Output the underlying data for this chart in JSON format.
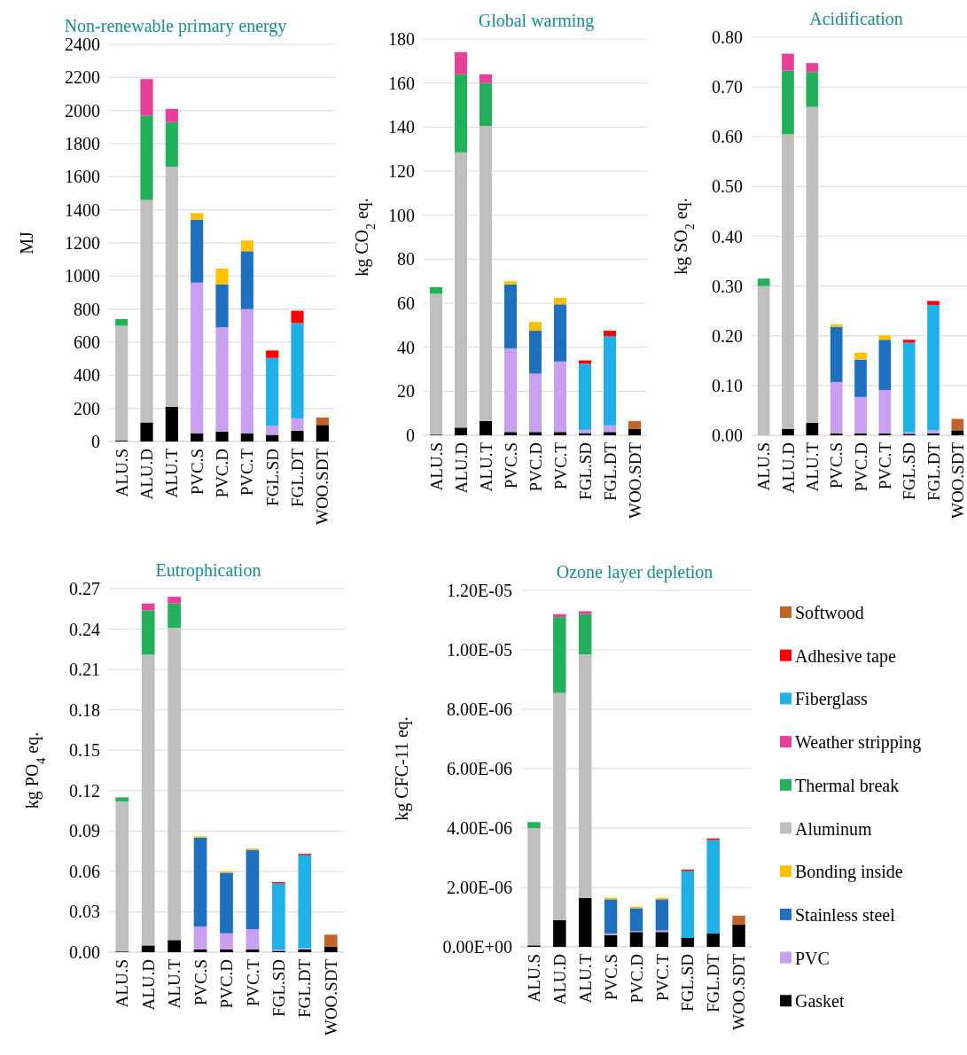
{
  "chart_data": [
    {
      "type": "bar",
      "stacked": true,
      "title": "Non-renewable primary energy",
      "ylabel": "MJ",
      "categories": [
        "ALU.S",
        "ALU.D",
        "ALU.T",
        "PVC.S",
        "PVC.D",
        "PVC.T",
        "FGL.SD",
        "FGL.DT",
        "WOO.SDT"
      ],
      "ylim": [
        0,
        2400
      ],
      "yticks": [
        0,
        200,
        400,
        600,
        800,
        1000,
        1200,
        1400,
        1600,
        1800,
        2000,
        2200,
        2400
      ],
      "grid": "y",
      "legend": false,
      "series": [
        {
          "color": "#000000",
          "values": [
            5,
            115,
            210,
            50,
            60,
            50,
            40,
            65,
            100
          ]
        },
        {
          "color": "#c9a0f0",
          "values": [
            null,
            null,
            null,
            910,
            630,
            750,
            55,
            75,
            null
          ]
        },
        {
          "color": "#1f6fbf",
          "values": [
            null,
            null,
            null,
            380,
            260,
            350,
            null,
            null,
            null
          ]
        },
        {
          "color": "#ffc000",
          "values": [
            null,
            null,
            null,
            40,
            95,
            65,
            null,
            null,
            null
          ]
        },
        {
          "color": "#bfbfbf",
          "values": [
            695,
            1345,
            1450,
            null,
            null,
            null,
            null,
            null,
            null
          ]
        },
        {
          "color": "#22b05a",
          "values": [
            40,
            510,
            270,
            null,
            null,
            null,
            null,
            null,
            null
          ]
        },
        {
          "color": "#e8409a",
          "values": [
            null,
            220,
            80,
            null,
            null,
            null,
            null,
            null,
            null
          ]
        },
        {
          "color": "#1fb0e8",
          "values": [
            null,
            null,
            null,
            null,
            null,
            null,
            410,
            575,
            null
          ]
        },
        {
          "color": "#ff0000",
          "values": [
            null,
            null,
            null,
            null,
            null,
            null,
            45,
            75,
            null
          ]
        },
        {
          "color": "#c0642a",
          "values": [
            null,
            null,
            null,
            null,
            null,
            null,
            null,
            null,
            45
          ]
        }
      ]
    },
    {
      "type": "bar",
      "stacked": true,
      "title": "Global warming",
      "ylabel": "kg CO$_{2}$ eq.",
      "categories": [
        "ALU.S",
        "ALU.D",
        "ALU.T",
        "PVC.S",
        "PVC.D",
        "PVC.T",
        "FGL.SD",
        "FGL.DT",
        "WOO.SDT"
      ],
      "ylim": [
        0,
        180
      ],
      "yticks": [
        0,
        20,
        40,
        60,
        80,
        100,
        120,
        140,
        160,
        180
      ],
      "grid": "y",
      "legend": false,
      "series": [
        {
          "color": "#000000",
          "values": [
            0.3,
            3.5,
            6.5,
            1.5,
            1.5,
            1.5,
            1,
            1.5,
            3
          ]
        },
        {
          "color": "#c9a0f0",
          "values": [
            null,
            null,
            null,
            38,
            26.5,
            32,
            1.5,
            3,
            null
          ]
        },
        {
          "color": "#1f6fbf",
          "values": [
            null,
            null,
            null,
            29,
            19.5,
            26,
            null,
            null,
            null
          ]
        },
        {
          "color": "#ffc000",
          "values": [
            null,
            null,
            null,
            1.5,
            4,
            3,
            null,
            null,
            null
          ]
        },
        {
          "color": "#bfbfbf",
          "values": [
            64,
            125,
            134,
            null,
            null,
            null,
            null,
            null,
            null
          ]
        },
        {
          "color": "#22b05a",
          "values": [
            3,
            35.5,
            19.5,
            null,
            null,
            null,
            null,
            null,
            null
          ]
        },
        {
          "color": "#e8409a",
          "values": [
            null,
            10,
            4,
            null,
            null,
            null,
            null,
            null,
            null
          ]
        },
        {
          "color": "#1fb0e8",
          "values": [
            null,
            null,
            null,
            null,
            null,
            null,
            30,
            40.5,
            null
          ]
        },
        {
          "color": "#ff0000",
          "values": [
            null,
            null,
            null,
            null,
            null,
            null,
            1.5,
            2.5,
            null
          ]
        },
        {
          "color": "#c0642a",
          "values": [
            null,
            null,
            null,
            null,
            null,
            null,
            null,
            null,
            3.5
          ]
        }
      ]
    },
    {
      "type": "bar",
      "stacked": true,
      "title": "Acidification",
      "ylabel": "kg SO$_{2}$ eq.",
      "categories": [
        "ALU.S",
        "ALU.D",
        "ALU.T",
        "PVC.S",
        "PVC.D",
        "PVC.T",
        "FGL.SD",
        "FGL.DT",
        "WOO.SDT"
      ],
      "ylim": [
        0,
        0.8
      ],
      "yticks": [
        {
          "value": 0,
          "label": "0.00"
        },
        {
          "value": 0.1,
          "label": "0.10"
        },
        {
          "value": 0.2,
          "label": "0.20"
        },
        {
          "value": 0.3,
          "label": "0.30"
        },
        {
          "value": 0.4,
          "label": "0.40"
        },
        {
          "value": 0.5,
          "label": "0.50"
        },
        {
          "value": 0.6,
          "label": "0.60"
        },
        {
          "value": 0.7,
          "label": "0.70"
        },
        {
          "value": 0.8,
          "label": "0.80"
        }
      ],
      "grid": "y",
      "legend": false,
      "series": [
        {
          "color": "#000000",
          "values": [
            null,
            0.013,
            0.025,
            0.004,
            0.004,
            0.004,
            0.003,
            0.004,
            0.01
          ]
        },
        {
          "color": "#c9a0f0",
          "values": [
            null,
            null,
            null,
            0.103,
            0.073,
            0.087,
            0.003,
            0.006,
            null
          ]
        },
        {
          "color": "#1f6fbf",
          "values": [
            null,
            null,
            null,
            0.111,
            0.075,
            0.101,
            null,
            null,
            null
          ]
        },
        {
          "color": "#ffc000",
          "values": [
            null,
            null,
            null,
            0.005,
            0.014,
            0.009,
            null,
            null,
            null
          ]
        },
        {
          "color": "#bfbfbf",
          "values": [
            0.3,
            0.592,
            0.635,
            null,
            null,
            null,
            null,
            null,
            null
          ]
        },
        {
          "color": "#22b05a",
          "values": [
            0.015,
            0.128,
            0.07,
            null,
            null,
            null,
            null,
            null,
            null
          ]
        },
        {
          "color": "#e8409a",
          "values": [
            null,
            0.034,
            0.018,
            null,
            null,
            null,
            null,
            null,
            null
          ]
        },
        {
          "color": "#1fb0e8",
          "values": [
            null,
            null,
            null,
            null,
            null,
            null,
            0.18,
            0.252,
            null
          ]
        },
        {
          "color": "#ff0000",
          "values": [
            null,
            null,
            null,
            null,
            null,
            null,
            0.006,
            0.008,
            null
          ]
        },
        {
          "color": "#c0642a",
          "values": [
            null,
            null,
            null,
            null,
            null,
            null,
            null,
            null,
            0.023
          ]
        }
      ]
    },
    {
      "type": "bar",
      "stacked": true,
      "title": "Eutrophication",
      "ylabel": "kg PO$_{4}$ eq.",
      "categories": [
        "ALU.S",
        "ALU.D",
        "ALU.T",
        "PVC.S",
        "PVC.D",
        "PVC.T",
        "FGL.SD",
        "FGL.DT",
        "WOO.SDT"
      ],
      "ylim": [
        0,
        0.27
      ],
      "yticks": [
        {
          "value": 0,
          "label": "0.00"
        },
        {
          "value": 0.03,
          "label": "0.03"
        },
        {
          "value": 0.06,
          "label": "0.06"
        },
        {
          "value": 0.09,
          "label": "0.09"
        },
        {
          "value": 0.12,
          "label": "0.12"
        },
        {
          "value": 0.15,
          "label": "0.15"
        },
        {
          "value": 0.18,
          "label": "0.18"
        },
        {
          "value": 0.21,
          "label": "0.21"
        },
        {
          "value": 0.24,
          "label": "0.24"
        },
        {
          "value": 0.27,
          "label": "0.27"
        }
      ],
      "grid": "y",
      "legend": false,
      "series": [
        {
          "color": "#000000",
          "values": [
            0.0005,
            0.005,
            0.009,
            0.002,
            0.002,
            0.002,
            0.001,
            0.002,
            0.004
          ]
        },
        {
          "color": "#c9a0f0",
          "values": [
            null,
            null,
            null,
            0.017,
            0.012,
            0.015,
            0.001,
            0.001,
            null
          ]
        },
        {
          "color": "#1f6fbf",
          "values": [
            null,
            null,
            null,
            0.066,
            0.045,
            0.059,
            null,
            null,
            null
          ]
        },
        {
          "color": "#ffc000",
          "values": [
            null,
            null,
            null,
            0.001,
            0.001,
            0.001,
            null,
            null,
            null
          ]
        },
        {
          "color": "#bfbfbf",
          "values": [
            0.1115,
            0.216,
            0.232,
            null,
            null,
            null,
            null,
            null,
            null
          ]
        },
        {
          "color": "#22b05a",
          "values": [
            0.003,
            0.033,
            0.018,
            null,
            null,
            null,
            null,
            null,
            null
          ]
        },
        {
          "color": "#e8409a",
          "values": [
            null,
            0.005,
            0.005,
            null,
            null,
            null,
            null,
            null,
            null
          ]
        },
        {
          "color": "#1fb0e8",
          "values": [
            null,
            null,
            null,
            null,
            null,
            null,
            0.049,
            0.069,
            null
          ]
        },
        {
          "color": "#ff0000",
          "values": [
            null,
            null,
            null,
            null,
            null,
            null,
            0.001,
            0.001,
            null
          ]
        },
        {
          "color": "#c0642a",
          "values": [
            null,
            null,
            null,
            null,
            null,
            null,
            null,
            null,
            0.009
          ]
        }
      ]
    },
    {
      "type": "bar",
      "stacked": true,
      "title": "Ozone layer depletion",
      "ylabel": "kg CFC-11 eq.",
      "categories": [
        "ALU.S",
        "ALU.D",
        "ALU.T",
        "PVC.S",
        "PVC.D",
        "PVC.T",
        "FGL.SD",
        "FGL.DT",
        "WOO.SDT"
      ],
      "ylim": [
        0,
        1.2e-05
      ],
      "yticks": [
        {
          "value": 0,
          "label": "0.00E+00"
        },
        {
          "value": 2e-06,
          "label": "2.00E-06"
        },
        {
          "value": 4e-06,
          "label": "4.00E-06"
        },
        {
          "value": 6e-06,
          "label": "6.00E-06"
        },
        {
          "value": 8e-06,
          "label": "8.00E-06"
        },
        {
          "value": 1e-05,
          "label": "1.00E-05"
        },
        {
          "value": 1.2e-05,
          "label": "1.20E-05"
        }
      ],
      "grid": "y",
      "legend": "right",
      "series": [
        {
          "name": "Gasket",
          "color": "#000000",
          "values": [
            5e-08,
            9e-07,
            1.65e-06,
            4e-07,
            5e-07,
            5e-07,
            3e-07,
            4.5e-07,
            7.5e-07
          ]
        },
        {
          "name": "PVC",
          "color": "#c9a0f0",
          "values": [
            null,
            null,
            null,
            5e-08,
            3e-08,
            5e-08,
            null,
            null,
            null
          ]
        },
        {
          "name": "Stainless steel",
          "color": "#1f6fbf",
          "values": [
            null,
            null,
            null,
            1.15e-06,
            7.7e-07,
            1.05e-06,
            null,
            null,
            null
          ]
        },
        {
          "name": "Bonding inside",
          "color": "#ffc000",
          "values": [
            null,
            null,
            null,
            5e-08,
            5e-08,
            5e-08,
            null,
            null,
            null
          ]
        },
        {
          "name": "Aluminum",
          "color": "#bfbfbf",
          "values": [
            3.95e-06,
            7.65e-06,
            8.2e-06,
            null,
            null,
            null,
            null,
            null,
            null
          ]
        },
        {
          "name": "Thermal break",
          "color": "#22b05a",
          "values": [
            2e-07,
            2.55e-06,
            1.35e-06,
            null,
            null,
            null,
            null,
            null,
            null
          ]
        },
        {
          "name": "Weather stripping",
          "color": "#e8409a",
          "values": [
            null,
            1e-07,
            1e-07,
            null,
            null,
            null,
            null,
            null,
            null
          ]
        },
        {
          "name": "Fiberglass",
          "color": "#1fb0e8",
          "values": [
            null,
            null,
            null,
            null,
            null,
            null,
            2.25e-06,
            3.15e-06,
            null
          ]
        },
        {
          "name": "Adhesive tape",
          "color": "#ff0000",
          "values": [
            null,
            null,
            null,
            null,
            null,
            null,
            5e-08,
            5e-08,
            null
          ]
        },
        {
          "name": "Softwood",
          "color": "#c0642a",
          "values": [
            null,
            null,
            null,
            null,
            null,
            null,
            null,
            null,
            3e-07
          ]
        }
      ]
    }
  ]
}
